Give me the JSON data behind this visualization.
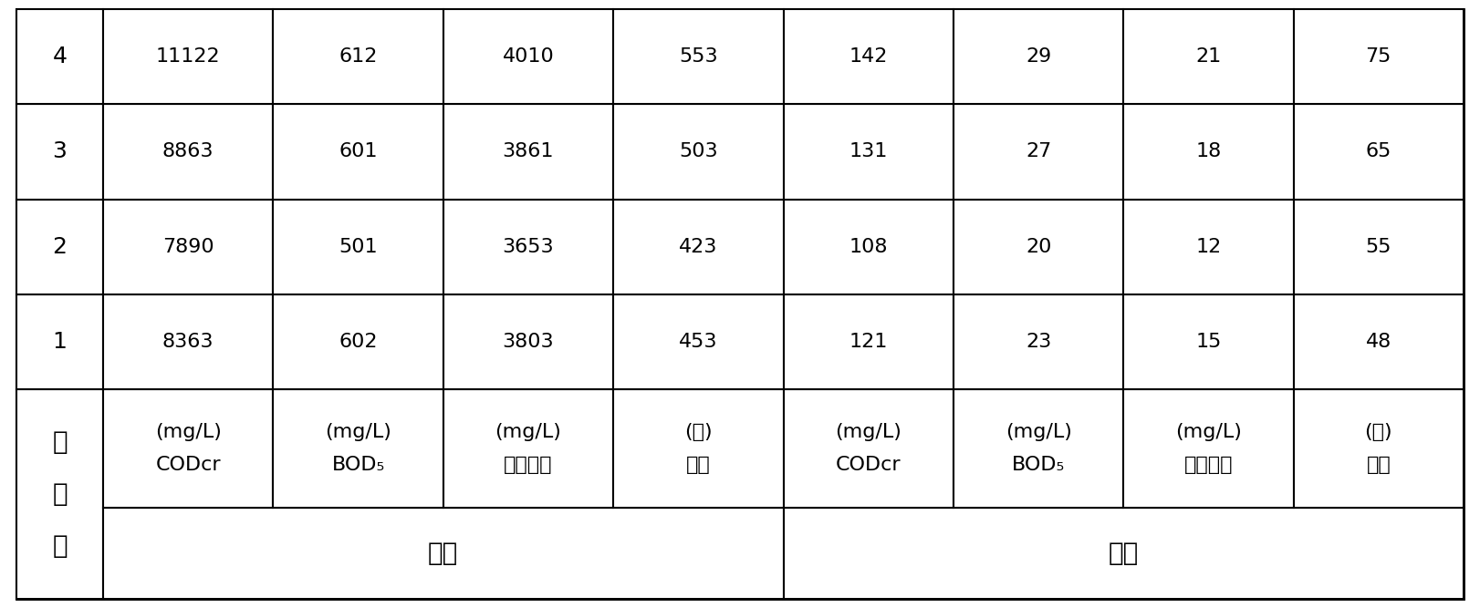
{
  "title_col_chars": [
    "实",
    "施",
    "例"
  ],
  "group1_label": "进水",
  "group2_label": "出水",
  "col_headers_line1": [
    "CODcr",
    "BOD₅",
    "有机物类",
    "色度",
    "CODcr",
    "BOD₅",
    "有机物类",
    "色度"
  ],
  "col_headers_line2": [
    "(mg/L)",
    "(mg/L)",
    "(mg/L)",
    "(倍)",
    "(mg/L)",
    "(mg/L)",
    "(mg/L)",
    "(倍)"
  ],
  "rows": [
    {
      "id": "1",
      "values": [
        "8363",
        "602",
        "3803",
        "453",
        "121",
        "23",
        "15",
        "48"
      ]
    },
    {
      "id": "2",
      "values": [
        "7890",
        "501",
        "3653",
        "423",
        "108",
        "20",
        "12",
        "55"
      ]
    },
    {
      "id": "3",
      "values": [
        "8863",
        "601",
        "3861",
        "503",
        "131",
        "27",
        "18",
        "65"
      ]
    },
    {
      "id": "4",
      "values": [
        "11122",
        "612",
        "4010",
        "553",
        "142",
        "29",
        "21",
        "75"
      ]
    }
  ],
  "data_fontsize": 16,
  "header_fontsize": 16,
  "group_fontsize": 20,
  "id_fontsize": 18,
  "char_fontsize": 20,
  "bg_color": "#ffffff",
  "border_color": "#000000",
  "lw_outer": 2.0,
  "lw_inner": 1.5
}
